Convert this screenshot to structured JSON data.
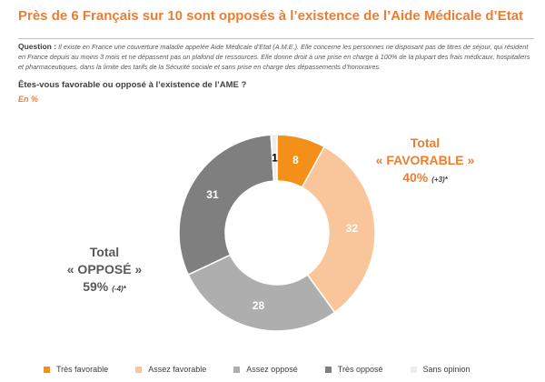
{
  "header": {
    "title": "Près de 6 Français sur 10 sont opposés à l’existence de l’Aide Médicale d’Etat",
    "question_label": "Question :",
    "question_text": "Il existe en France une couverture maladie appelée Aide Médicale d’Etat (A.M.E.). Elle concerne les personnes ne disposant pas de titres de séjour, qui résident en France depuis au moins 3 mois et ne dépassent pas un plafond de ressources. Elle donne droit à une prise en charge à 100% de la plupart des frais médicaux, hospitaliers et pharmaceutiques, dans la limite des tarifs de la Sécurité sociale et sans prise en charge des dépassements d’honoraires.",
    "subquestion": "Êtes-vous favorable ou opposé à l’existence de l’AME ?",
    "unit": "En %"
  },
  "totals": {
    "favorable": {
      "line1": "Total",
      "line2": "« FAVORABLE »",
      "value": "40%",
      "change": "(+3)*"
    },
    "oppose": {
      "line1": "Total",
      "line2": "« OPPOSÉ »",
      "value": "59%",
      "change": "(-4)*"
    }
  },
  "chart_data": {
    "type": "pie",
    "donut": true,
    "title": "Êtes-vous favorable ou opposé à l’existence de l’AME ?",
    "unit": "En %",
    "categories": [
      "Très favorable",
      "Assez favorable",
      "Assez opposé",
      "Très opposé",
      "Sans opinion"
    ],
    "values": [
      8,
      32,
      28,
      31,
      1
    ],
    "colors": [
      "#F39019",
      "#F9C59A",
      "#AEAEAE",
      "#7F7F7F",
      "#EDEDED"
    ],
    "label_colors": [
      "#ffffff",
      "#ffffff",
      "#ffffff",
      "#ffffff",
      "#000000"
    ],
    "legend_position": "bottom"
  }
}
